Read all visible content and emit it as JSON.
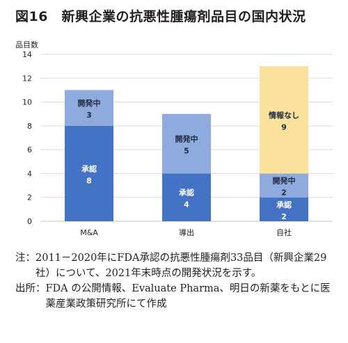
{
  "title": "図16　新興企業の抗悪性腫瘍剤品目の国内状況",
  "chart_data": {
    "type": "bar",
    "stacked": true,
    "ylabel": "品目数",
    "ylim": [
      0,
      14
    ],
    "yticks": [
      0,
      2,
      4,
      6,
      8,
      10,
      12,
      14
    ],
    "grid": true,
    "categories": [
      "M&A",
      "導出",
      "自社"
    ],
    "series": [
      {
        "name": "承認",
        "values": [
          8,
          4,
          2
        ],
        "color": "#4472c4",
        "label_color": "#ffffff"
      },
      {
        "name": "開発中",
        "values": [
          3,
          5,
          2
        ],
        "color": "#8faadc",
        "label_color": "#1f2a44"
      },
      {
        "name": "情報なし",
        "values": [
          0,
          0,
          9
        ],
        "color": "#fae29d",
        "label_color": "#1f2a44"
      }
    ]
  },
  "notes": [
    {
      "head": "注：",
      "text": "2011－2020年にFDA承認の抗悪性腫瘍剤33品目（新興企業29社）について、2021年末時点の開発状況を示す。"
    },
    {
      "head": "出所：",
      "text": "FDA の公開情報、Evaluate Pharma、明日の新薬をもとに医薬産業政策研究所にて作成"
    }
  ]
}
